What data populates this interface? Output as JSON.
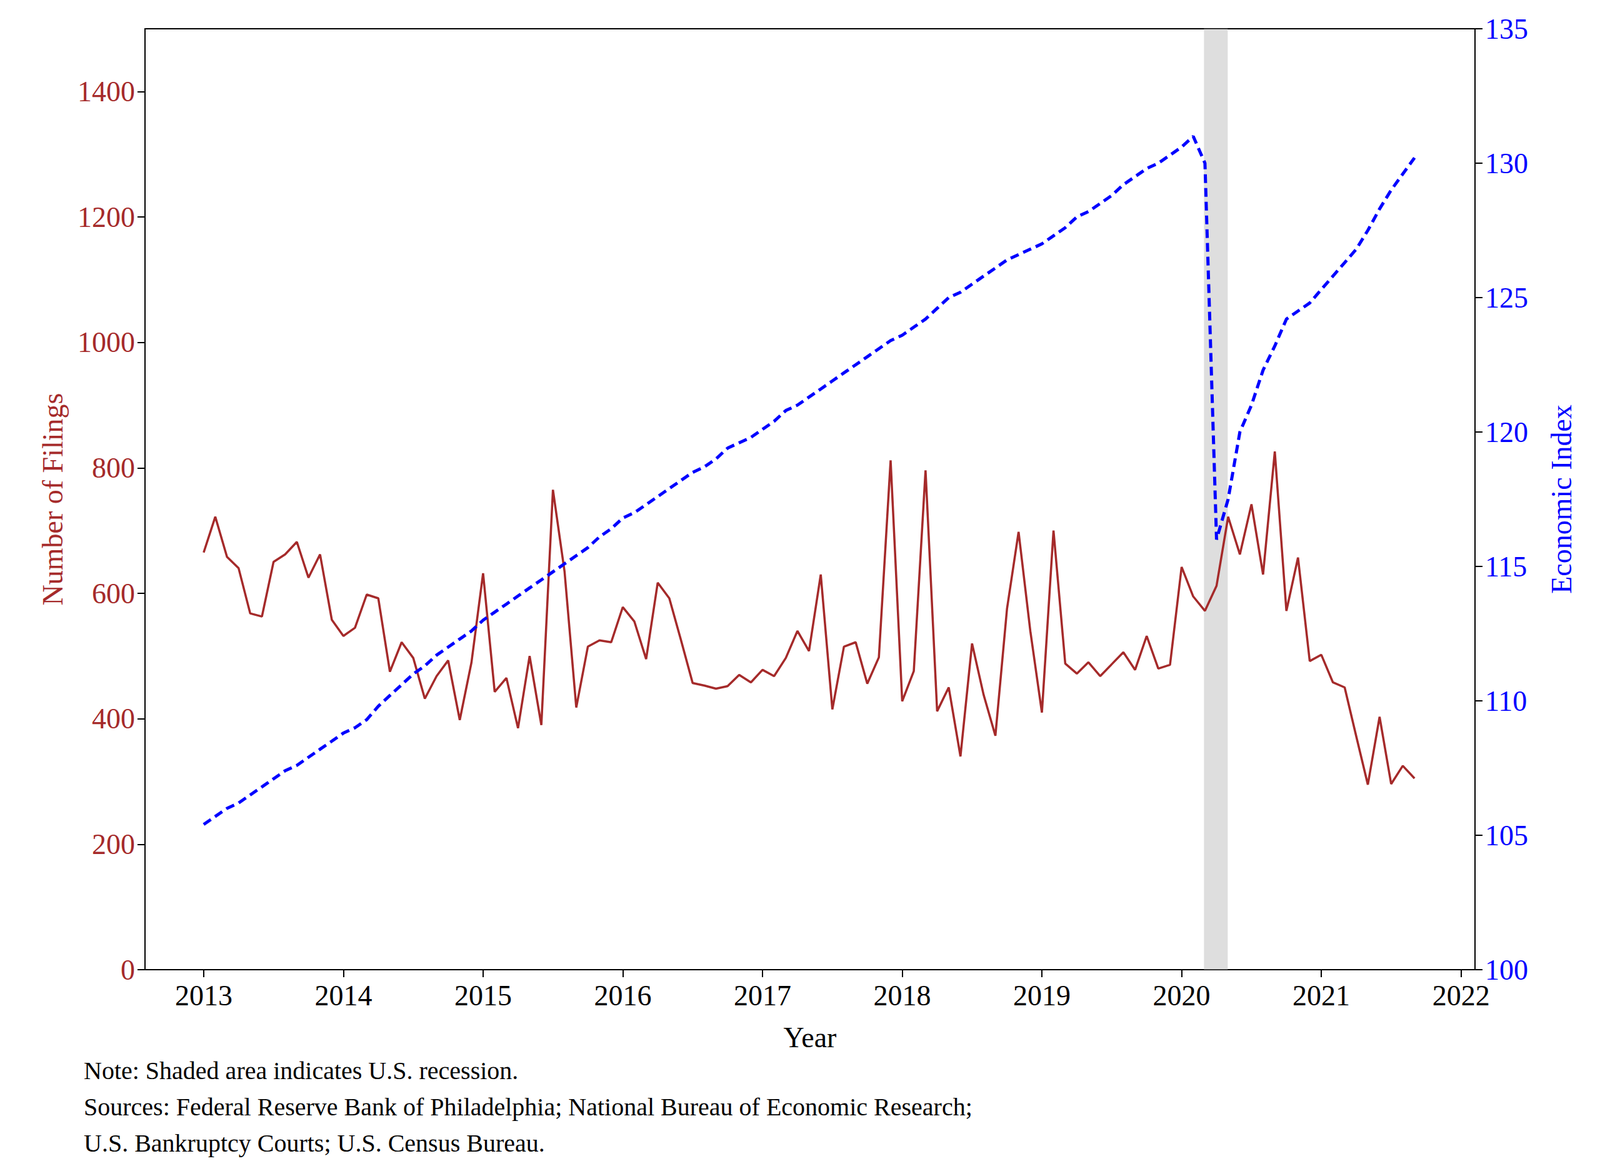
{
  "chart_data": {
    "type": "line",
    "x_label": "Year",
    "y_label": "Number of Filings",
    "y2_label": "Economic Index",
    "notes": [
      "Note: Shaded area indicates U.S. recession.",
      "Sources: Federal Reserve Bank of Philadelphia; National Bureau of Economic Research;",
      "U.S. Bankruptcy Courts; U.S. Census Bureau."
    ],
    "shaded_regions": [
      {
        "start": 2020.16,
        "end": 2020.33
      }
    ],
    "x": [
      2013.0,
      2013.083,
      2013.167,
      2013.25,
      2013.333,
      2013.417,
      2013.5,
      2013.583,
      2013.667,
      2013.75,
      2013.833,
      2013.917,
      2014.0,
      2014.083,
      2014.167,
      2014.25,
      2014.333,
      2014.417,
      2014.5,
      2014.583,
      2014.667,
      2014.75,
      2014.833,
      2014.917,
      2015.0,
      2015.083,
      2015.167,
      2015.25,
      2015.333,
      2015.417,
      2015.5,
      2015.583,
      2015.667,
      2015.75,
      2015.833,
      2015.917,
      2016.0,
      2016.083,
      2016.167,
      2016.25,
      2016.333,
      2016.417,
      2016.5,
      2016.583,
      2016.667,
      2016.75,
      2016.833,
      2016.917,
      2017.0,
      2017.083,
      2017.167,
      2017.25,
      2017.333,
      2017.417,
      2017.5,
      2017.583,
      2017.667,
      2017.75,
      2017.833,
      2017.917,
      2018.0,
      2018.083,
      2018.167,
      2018.25,
      2018.333,
      2018.417,
      2018.5,
      2018.583,
      2018.667,
      2018.75,
      2018.833,
      2018.917,
      2019.0,
      2019.083,
      2019.167,
      2019.25,
      2019.333,
      2019.417,
      2019.5,
      2019.583,
      2019.667,
      2019.75,
      2019.833,
      2019.917,
      2020.0,
      2020.083,
      2020.167,
      2020.25,
      2020.333,
      2020.417,
      2020.5,
      2020.583,
      2020.667,
      2020.75,
      2020.833,
      2020.917,
      2021.0,
      2021.083,
      2021.167,
      2021.25,
      2021.333,
      2021.417,
      2021.5,
      2021.583,
      2021.667
    ],
    "series": [
      {
        "color": "#a52a2a",
        "line_style": "solid",
        "axis": "y",
        "values": [
          665,
          722,
          658,
          640,
          568,
          563,
          650,
          662,
          682,
          625,
          662,
          558,
          532,
          545,
          598,
          592,
          475,
          522,
          497,
          432,
          468,
          493,
          398,
          490,
          632,
          443,
          465,
          385,
          500,
          390,
          765,
          635,
          418,
          515,
          525,
          522,
          578,
          555,
          495,
          617,
          592,
          525,
          457,
          453,
          448,
          452,
          470,
          458,
          478,
          468,
          497,
          540,
          508,
          630,
          415,
          515,
          522,
          456,
          498,
          812,
          428,
          476,
          796,
          412,
          450,
          340,
          520,
          438,
          373,
          575,
          698,
          540,
          410,
          700,
          488,
          472,
          490,
          468,
          487,
          506,
          478,
          532,
          480,
          486,
          642,
          595,
          572,
          612,
          722,
          662,
          742,
          630,
          826,
          572,
          657,
          492,
          502,
          458,
          450,
          372,
          295,
          403,
          296,
          325,
          305
        ]
      },
      {
        "color": "#0000ff",
        "line_style": "dashed",
        "axis": "y2",
        "values": [
          105.4,
          105.7,
          106.0,
          106.2,
          106.5,
          106.8,
          107.1,
          107.4,
          107.6,
          107.9,
          108.2,
          108.5,
          108.8,
          109.0,
          109.3,
          109.8,
          110.2,
          110.6,
          111.0,
          111.3,
          111.7,
          112.0,
          112.3,
          112.6,
          113.0,
          113.3,
          113.6,
          113.9,
          114.2,
          114.5,
          114.8,
          115.1,
          115.4,
          115.7,
          116.1,
          116.4,
          116.8,
          117.0,
          117.3,
          117.6,
          117.9,
          118.2,
          118.5,
          118.7,
          119.0,
          119.4,
          119.6,
          119.8,
          120.1,
          120.4,
          120.8,
          121.0,
          121.3,
          121.6,
          121.9,
          122.2,
          122.5,
          122.8,
          123.1,
          123.4,
          123.6,
          123.9,
          124.2,
          124.6,
          125.0,
          125.2,
          125.5,
          125.8,
          126.1,
          126.4,
          126.6,
          126.8,
          127.0,
          127.3,
          127.6,
          128.0,
          128.2,
          128.5,
          128.8,
          129.2,
          129.5,
          129.8,
          130.0,
          130.3,
          130.6,
          131.0,
          130.0,
          116.0,
          117.5,
          120.0,
          121.0,
          122.3,
          123.2,
          124.2,
          124.5,
          124.8,
          125.3,
          125.8,
          126.3,
          126.8,
          127.5,
          128.3,
          129.0,
          129.6,
          130.2
        ]
      }
    ],
    "xlim": [
      2012.58,
      2022.1
    ],
    "xticks": [
      2013,
      2014,
      2015,
      2016,
      2017,
      2018,
      2019,
      2020,
      2021,
      2022
    ],
    "ylim": [
      0,
      1500
    ],
    "yticks": [
      0,
      200,
      400,
      600,
      800,
      1000,
      1200,
      1400
    ],
    "y2lim": [
      100,
      135
    ],
    "y2ticks": [
      100,
      105,
      110,
      115,
      120,
      125,
      130,
      135
    ],
    "grid": false
  }
}
